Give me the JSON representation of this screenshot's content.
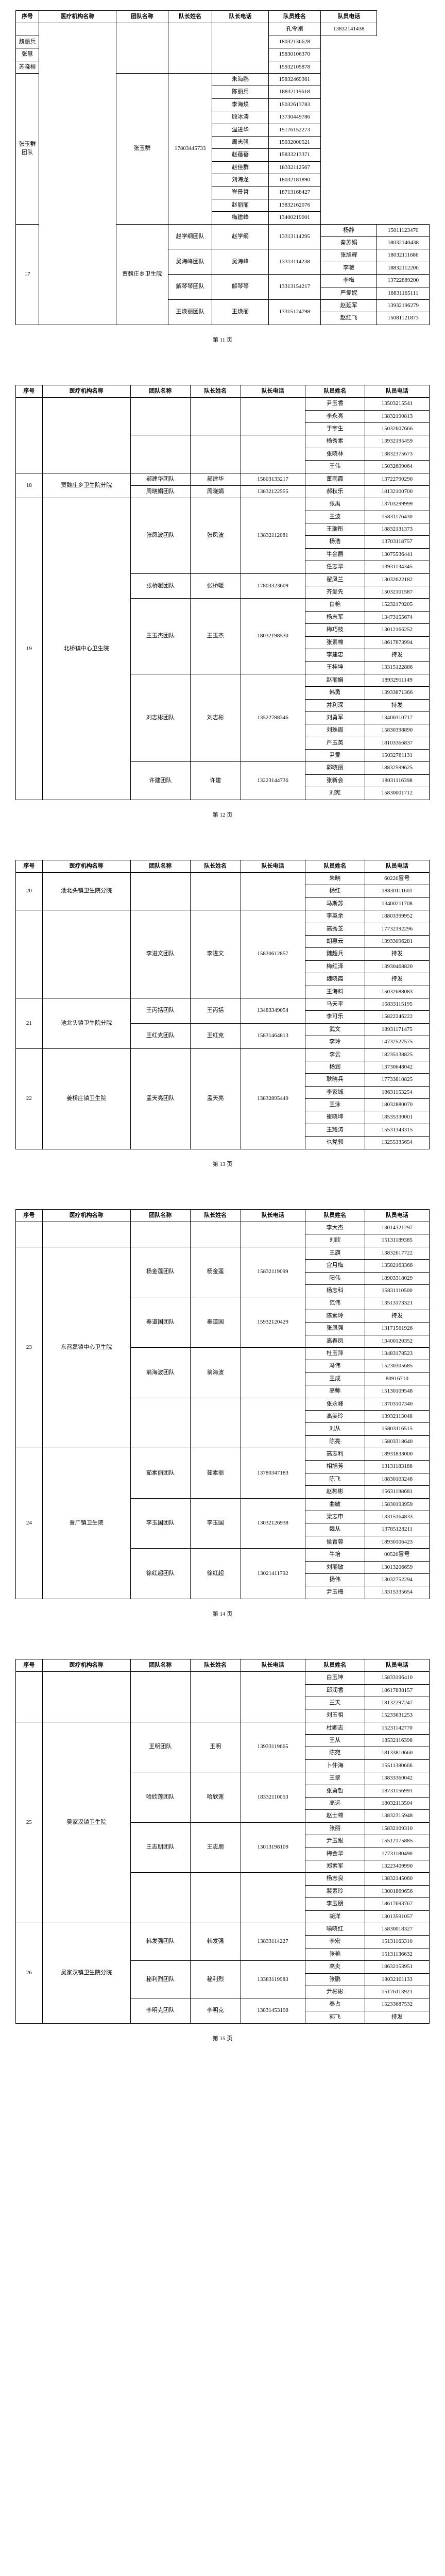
{
  "headers": {
    "seq": "序号",
    "org": "医疗机构名称",
    "team": "团队名称",
    "leader": "队长姓名",
    "leader_tel": "队长电话",
    "member": "队员姓名",
    "member_tel": "队员电话"
  },
  "page_nums": [
    "第 11 页",
    "第 12 页",
    "第 13 页",
    "第 14 页",
    "第 15 页"
  ],
  "pages": [
    {
      "rows": [
        {
          "seq": "",
          "org": "",
          "team": "",
          "leader": "",
          "leader_tel": "",
          "member": "孔令刚",
          "member_tel": "13832141438",
          "org_rs": 24,
          "team_rs": 4,
          "leader_rs": 4,
          "leader_tel_rs": 4
        },
        {
          "member": "魏丽兵",
          "member_tel": "18032136628"
        },
        {
          "member": "张慧",
          "member_tel": "15830106370"
        },
        {
          "member": "苏晓桓",
          "member_tel": "15932105878"
        },
        {
          "team": "张玉群团队",
          "leader": "张玉群",
          "leader_tel": "17803445733",
          "member": "朱海鸥",
          "member_tel": "15832469361",
          "team_rs": 12,
          "leader_rs": 12,
          "leader_tel_rs": 12
        },
        {
          "member": "陈丽兵",
          "member_tel": "18832119618"
        },
        {
          "member": "李海焕",
          "member_tel": "15032613783"
        },
        {
          "member": "顾冰涛",
          "member_tel": "13730449786"
        },
        {
          "member": "温进华",
          "member_tel": "15176152273"
        },
        {
          "member": "周志强",
          "member_tel": "15032000521"
        },
        {
          "member": "赵蓓蓓",
          "member_tel": "15833213371"
        },
        {
          "member": "赵佳群",
          "member_tel": "18332112567"
        },
        {
          "member": "刘海龙",
          "member_tel": "18032181890"
        },
        {
          "member": "崔景哲",
          "member_tel": "18713168427"
        },
        {
          "member": "赵丽丽",
          "member_tel": "13832162076"
        },
        {
          "member": "梅建峰",
          "member_tel": "13400219001"
        },
        {
          "seq": "17",
          "org": "贾魏庄乡卫生院",
          "team": "赵学纲团队",
          "leader": "赵学纲",
          "leader_tel": "13313114295",
          "member": "杨静",
          "member_tel": "15011123470",
          "seq_rs": 8,
          "org_rs": 8,
          "team_rs": 2,
          "leader_rs": 2,
          "leader_tel_rs": 2
        },
        {
          "member": "秦苏娟",
          "member_tel": "18032140438"
        },
        {
          "team": "吴海峰团队",
          "leader": "吴海峰",
          "leader_tel": "13313114238",
          "member": "张旭辉",
          "member_tel": "18032111686",
          "team_rs": 2,
          "leader_rs": 2,
          "leader_tel_rs": 2
        },
        {
          "member": "李艳",
          "member_tel": "18832112200"
        },
        {
          "team": "解琴琴团队",
          "leader": "解琴琴",
          "leader_tel": "13313154217",
          "member": "李梅",
          "member_tel": "13722889200",
          "team_rs": 2,
          "leader_rs": 2,
          "leader_tel_rs": 2
        },
        {
          "member": "严爱妮",
          "member_tel": "18831165111"
        },
        {
          "team": "王焕丽团队",
          "leader": "王焕丽",
          "leader_tel": "13315124798",
          "member": "赵延军",
          "member_tel": "13932196279",
          "team_rs": 2,
          "leader_rs": 2,
          "leader_tel_rs": 2
        },
        {
          "member": "赵红飞",
          "member_tel": "15081121873"
        }
      ]
    },
    {
      "rows": [
        {
          "seq": "",
          "org": "",
          "team": "",
          "leader": "",
          "leader_tel": "",
          "member": "尹玉香",
          "member_tel": "13503215541",
          "seq_rs": 6,
          "org_rs": 6,
          "team_rs": 3,
          "leader_rs": 3,
          "leader_tel_rs": 3
        },
        {
          "member": "李永亮",
          "member_tel": "13832190813"
        },
        {
          "member": "于宇生",
          "member_tel": "15032607666"
        },
        {
          "team": "",
          "leader": "",
          "leader_tel": "",
          "member": "杨秀素",
          "member_tel": "13932195459",
          "team_rs": 3,
          "leader_rs": 3,
          "leader_tel_rs": 3
        },
        {
          "member": "张晓林",
          "member_tel": "13832375673"
        },
        {
          "member": "王伟",
          "member_tel": "15032699064"
        },
        {
          "seq": "18",
          "org": "贾魏庄乡卫生院分院",
          "team": "郝建华团队",
          "leader": "郝建华",
          "leader_tel": "15803133217",
          "member": "董雨霞",
          "member_tel": "13722790290",
          "seq_rs": 2,
          "org_rs": 2
        },
        {
          "team": "周晓娟团队",
          "leader": "周晓娟",
          "leader_tel": "13832122555",
          "member": "郝秋乐",
          "member_tel": "18132100700"
        },
        {
          "seq": "19",
          "org": "北桥镇中心卫生院",
          "team": "张凤波团队",
          "leader": "张凤波",
          "leader_tel": "13832112081",
          "member": "张禹",
          "member_tel": "13703299999",
          "seq_rs": 24,
          "org_rs": 24,
          "team_rs": 6,
          "leader_rs": 6,
          "leader_tel_rs": 6
        },
        {
          "member": "王波",
          "member_tel": "15831176430"
        },
        {
          "member": "王瑞彤",
          "member_tel": "18832131373"
        },
        {
          "member": "杨浩",
          "member_tel": "13703118757"
        },
        {
          "member": "牛金爵",
          "member_tel": "13075536441"
        },
        {
          "member": "任志华",
          "member_tel": "13931134345"
        },
        {
          "team": "张桥暖团队",
          "leader": "张桥暖",
          "leader_tel": "17803323609",
          "member": "翟凤兰",
          "member_tel": "13032622182",
          "team_rs": 2,
          "leader_rs": 2,
          "leader_tel_rs": 2
        },
        {
          "member": "齐爱先",
          "member_tel": "15032101587"
        },
        {
          "team": "王玉杰团队",
          "leader": "王玉杰",
          "leader_tel": "18032198530",
          "member": "白艳",
          "member_tel": "15232179205",
          "team_rs": 6,
          "leader_rs": 6,
          "leader_tel_rs": 6
        },
        {
          "member": "杨志军",
          "member_tel": "13473155674"
        },
        {
          "member": "梅巧枝",
          "member_tel": "13012166252"
        },
        {
          "member": "张素棉",
          "member_tel": "18617873994"
        },
        {
          "member": "李建忠",
          "member_tel": "持发"
        },
        {
          "member": "王桂坤",
          "member_tel": "13315122886"
        },
        {
          "team": "刘志彬团队",
          "leader": "刘志彬",
          "leader_tel": "13522788346",
          "member": "赵丽娟",
          "member_tel": "18932911149",
          "team_rs": 7,
          "leader_rs": 7,
          "leader_tel_rs": 7
        },
        {
          "member": "韩勇",
          "member_tel": "13933871366"
        },
        {
          "member": "并利深",
          "member_tel": "持发"
        },
        {
          "member": "刘勇军",
          "member_tel": "13400310717"
        },
        {
          "member": "刘珠周",
          "member_tel": "15830398890"
        },
        {
          "member": "严玉英",
          "member_tel": "18103366837"
        },
        {
          "member": "尹爱",
          "member_tel": "15032761131"
        },
        {
          "team": "许建团队",
          "leader": "许建",
          "leader_tel": "13223144736",
          "member": "郭晓丽",
          "member_tel": "18832599625",
          "team_rs": 3,
          "leader_rs": 3,
          "leader_tel_rs": 3
        },
        {
          "member": "张新会",
          "member_tel": "18031116398"
        },
        {
          "member": "刘宪",
          "member_tel": "15830001712"
        }
      ]
    },
    {
      "rows": [
        {
          "seq": "20",
          "org": "池北头镇卫生院分院",
          "team": "",
          "leader": "",
          "leader_tel": "",
          "member": "朱晓",
          "member_tel": "60220冒号",
          "seq_rs": 3,
          "org_rs": 3,
          "team_rs": 3,
          "leader_rs": 3,
          "leader_tel_rs": 3
        },
        {
          "member": "杨红",
          "member_tel": "18830111601"
        },
        {
          "member": "马斯苏",
          "member_tel": "13400211708"
        },
        {
          "seq": "",
          "org": "",
          "team": "李进文团队",
          "leader": "李进文",
          "leader_tel": "15830612857",
          "member": "李英余",
          "member_tel": "18803399952",
          "seq_rs": 7,
          "org_rs": 7,
          "team_rs": 7,
          "leader_rs": 7,
          "leader_tel_rs": 7
        },
        {
          "member": "高秀芝",
          "member_tel": "17732192296"
        },
        {
          "member": "胡惠云",
          "member_tel": "13933096281"
        },
        {
          "member": "魏超兵",
          "member_tel": "持发"
        },
        {
          "member": "梅红泽",
          "member_tel": "13930468820"
        },
        {
          "member": "魏晓霞",
          "member_tel": "持发"
        },
        {
          "member": "王海料",
          "member_tel": "15032688083"
        },
        {
          "seq": "21",
          "org": "池北头镇卫生院分院",
          "team": "王丙括团队",
          "leader": "王丙括",
          "leader_tel": "13483349054",
          "member": "马天平",
          "member_tel": "15833115195",
          "seq_rs": 4,
          "org_rs": 4,
          "team_rs": 2,
          "leader_rs": 2,
          "leader_tel_rs": 2
        },
        {
          "member": "李可乐",
          "member_tel": "15822246222"
        },
        {
          "team": "王红克团队",
          "leader": "王红克",
          "leader_tel": "15831464813",
          "member": "武文",
          "member_tel": "18931171475",
          "team_rs": 2,
          "leader_rs": 2,
          "leader_tel_rs": 2
        },
        {
          "member": "李玲",
          "member_tel": "14732527575"
        },
        {
          "seq": "22",
          "org": "姜桥庄镇卫生院",
          "team": "孟天亮团队",
          "leader": "孟天亮",
          "leader_tel": "13832895449",
          "member": "李云",
          "member_tel": "18235138825",
          "seq_rs": 8,
          "org_rs": 8,
          "team_rs": 8,
          "leader_rs": 8,
          "leader_tel_rs": 8
        },
        {
          "member": "杨润",
          "member_tel": "13730648042"
        },
        {
          "member": "耿晓兵",
          "member_tel": "17733810825"
        },
        {
          "member": "李家城",
          "member_tel": "18631153254"
        },
        {
          "member": "王泳",
          "member_tel": "18032880070"
        },
        {
          "member": "崔晓坤",
          "member_tel": "18535330001"
        },
        {
          "member": "王耀涛",
          "member_tel": "15531343315"
        },
        {
          "member": "乜党郭",
          "member_tel": "13255335654"
        }
      ]
    },
    {
      "rows": [
        {
          "seq": "",
          "org": "",
          "team": "",
          "leader": "",
          "leader_tel": "",
          "member": "李大杰",
          "member_tel": "13014321297",
          "seq_rs": 2,
          "org_rs": 2,
          "team_rs": 2,
          "leader_rs": 2,
          "leader_tel_rs": 2
        },
        {
          "member": "刘欣",
          "member_tel": "15131189385"
        },
        {
          "seq": "23",
          "org": "东召磊镇中心卫生院",
          "team": "杨金莲团队",
          "leader": "杨金莲",
          "leader_tel": "15832119099",
          "member": "王旗",
          "member_tel": "13832617722",
          "seq_rs": 16,
          "org_rs": 16,
          "team_rs": 4,
          "leader_rs": 4,
          "leader_tel_rs": 4
        },
        {
          "member": "宫月梅",
          "member_tel": "13582163366"
        },
        {
          "member": "阳伟",
          "member_tel": "18903318029"
        },
        {
          "member": "杨志科",
          "member_tel": "15831110500"
        },
        {
          "team": "秦道国团队",
          "leader": "秦道国",
          "leader_tel": "15932120429",
          "member": "范伟",
          "member_tel": "13513173321",
          "team_rs": 4,
          "leader_rs": 4,
          "leader_tel_rs": 4
        },
        {
          "member": "陈素玲",
          "member_tel": "持发"
        },
        {
          "member": "张凤强",
          "member_tel": "13171561926"
        },
        {
          "member": "高春凤",
          "member_tel": "13400120352"
        },
        {
          "team": "翁海波团队",
          "leader": "翁海波",
          "leader_tel": "",
          "member": "杜玉萍",
          "member_tel": "13483178523",
          "team_rs": 4,
          "leader_rs": 4,
          "leader_tel_rs": 4
        },
        {
          "member": "冯伟",
          "member_tel": "15230305685"
        },
        {
          "member": "王成",
          "member_tel": "80916710"
        },
        {
          "member": "高帅",
          "member_tel": "15130109548"
        },
        {
          "team": "",
          "leader": "",
          "leader_tel": "",
          "member": "张永峰",
          "member_tel": "13703107340",
          "team_rs": 4,
          "leader_rs": 4,
          "leader_tel_rs": 4
        },
        {
          "member": "高美玲",
          "member_tel": "13932113048"
        },
        {
          "member": "刘从",
          "member_tel": "15803116515"
        },
        {
          "member": "陈亮",
          "member_tel": "15803318640"
        },
        {
          "seq": "24",
          "org": "晋广镇卫生院",
          "team": "茹素丽团队",
          "leader": "茹素丽",
          "leader_tel": "13780347183",
          "member": "高志利",
          "member_tel": "18931833000",
          "seq_rs": 12,
          "org_rs": 12,
          "team_rs": 4,
          "leader_rs": 4,
          "leader_tel_rs": 4
        },
        {
          "member": "相旭芳",
          "member_tel": "13131183188"
        },
        {
          "member": "陈飞",
          "member_tel": "18830103248"
        },
        {
          "member": "赵彬彬",
          "member_tel": "15631198681"
        },
        {
          "team": "李玉国团队",
          "leader": "李玉国",
          "leader_tel": "13032126938",
          "member": "曲敏",
          "member_tel": "15830193959",
          "team_rs": 4,
          "leader_rs": 4,
          "leader_tel_rs": 4
        },
        {
          "member": "梁志申",
          "member_tel": "13315164833"
        },
        {
          "member": "魏从",
          "member_tel": "13785128211"
        },
        {
          "member": "侯青蓉",
          "member_tel": "18930106423"
        },
        {
          "team": "徐红超团队",
          "leader": "徐红超",
          "leader_tel": "13021411792",
          "member": "牛培",
          "member_tel": "00520冒号",
          "team_rs": 4,
          "leader_rs": 4,
          "leader_tel_rs": 4
        },
        {
          "member": "刘丽敏",
          "member_tel": "13013206659"
        },
        {
          "member": "扬伟",
          "member_tel": "13032752294"
        },
        {
          "member": "尹玉梅",
          "member_tel": "13315335654"
        }
      ]
    },
    {
      "rows": [
        {
          "seq": "",
          "org": "",
          "team": "",
          "leader": "",
          "leader_tel": "",
          "member": "白玉坤",
          "member_tel": "15833196410",
          "seq_rs": 4,
          "org_rs": 4,
          "team_rs": 4,
          "leader_rs": 4,
          "leader_tel_rs": 4
        },
        {
          "member": "邱润香",
          "member_tel": "18617838157"
        },
        {
          "member": "兰天",
          "member_tel": "18132297247"
        },
        {
          "member": "刘玉祖",
          "member_tel": "15233631253"
        },
        {
          "seq": "25",
          "org": "吴家汉镇卫生院",
          "team": "王明团队",
          "leader": "王明",
          "leader_tel": "13933119665",
          "member": "杜卿志",
          "member_tel": "15231142770",
          "seq_rs": 16,
          "org_rs": 16,
          "team_rs": 4,
          "leader_rs": 4,
          "leader_tel_rs": 4
        },
        {
          "member": "王从",
          "member_tel": "18532116398"
        },
        {
          "member": "陈宛",
          "member_tel": "18133810660"
        },
        {
          "member": "卜仲海",
          "member_tel": "15511380666"
        },
        {
          "team": "哈欣莲团队",
          "leader": "哈欣莲",
          "leader_tel": "18332110053",
          "member": "王翠",
          "member_tel": "13833360042",
          "team_rs": 4,
          "leader_rs": 4,
          "leader_tel_rs": 4
        },
        {
          "member": "张勇哲",
          "member_tel": "18731156991"
        },
        {
          "member": "高远",
          "member_tel": "18032113504"
        },
        {
          "member": "赵士棉",
          "member_tel": "13832315948"
        },
        {
          "team": "王志朋团队",
          "leader": "王志朋",
          "leader_tel": "13013198109",
          "member": "张丽",
          "member_tel": "15832109310",
          "team_rs": 4,
          "leader_rs": 4,
          "leader_tel_rs": 4
        },
        {
          "member": "尹玉跟",
          "member_tel": "15512175885"
        },
        {
          "member": "梅会华",
          "member_tel": "17731180490"
        },
        {
          "member": "郑素军",
          "member_tel": "13223409990"
        },
        {
          "team": "",
          "leader": "",
          "leader_tel": "",
          "member": "杨志良",
          "member_tel": "13832145060",
          "team_rs": 4,
          "leader_rs": 4,
          "leader_tel_rs": 4
        },
        {
          "member": "裴素玲",
          "member_tel": "13001869656"
        },
        {
          "member": "李玉朋",
          "member_tel": "18617693767"
        },
        {
          "member": "胡洋",
          "member_tel": "13013591057"
        },
        {
          "seq": "26",
          "org": "吴家汉镇卫生院分院",
          "team": "韩发强团队",
          "leader": "韩发强",
          "leader_tel": "13833114227",
          "member": "喻晓红",
          "member_tel": "15830018327",
          "seq_rs": 8,
          "org_rs": 8,
          "team_rs": 3,
          "leader_rs": 3,
          "leader_tel_rs": 3
        },
        {
          "member": "李宏",
          "member_tel": "15131163310"
        },
        {
          "member": "张艳",
          "member_tel": "15131136632"
        },
        {
          "team": "秘利烈团队",
          "leader": "秘利烈",
          "leader_tel": "13383119983",
          "member": "高炎",
          "member_tel": "18632153951",
          "team_rs": 3,
          "leader_rs": 3,
          "leader_tel_rs": 3
        },
        {
          "member": "张鹏",
          "member_tel": "18032101133"
        },
        {
          "member": "尹彬彬",
          "member_tel": "15176113921"
        },
        {
          "team": "李明克团队",
          "leader": "李明克",
          "leader_tel": "13831453198",
          "member": "秦占",
          "member_tel": "15233687532",
          "team_rs": 2,
          "leader_rs": 2,
          "leader_tel_rs": 2
        },
        {
          "member": "郭飞",
          "member_tel": "持发"
        }
      ]
    }
  ]
}
